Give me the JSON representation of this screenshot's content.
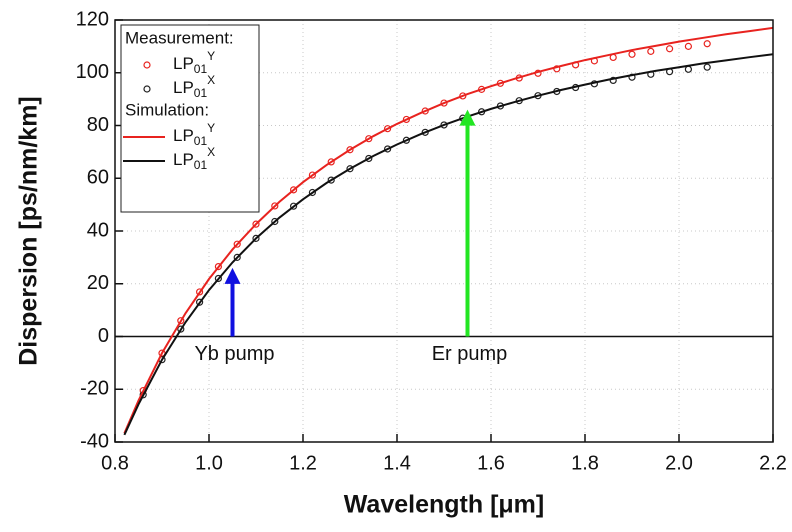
{
  "chart_data": {
    "type": "line",
    "x_label": "Wavelength [μm]",
    "y_label": "Dispersion [ps/nm/km]",
    "xlim": [
      0.8,
      2.2
    ],
    "ylim": [
      -40,
      120
    ],
    "xticks": [
      0.8,
      {
        "value": 1.0,
        "label": "1.0"
      },
      1.2,
      1.4,
      1.6,
      1.8,
      {
        "value": 2.0,
        "label": "2.0"
      },
      2.2
    ],
    "yticks": [
      -40,
      -20,
      0,
      20,
      40,
      60,
      80,
      100,
      120
    ],
    "grid": true,
    "zero_line": true,
    "legend_position": "upper left",
    "legend_titles": {
      "markers": "Measurement:",
      "line": "Simulation:"
    },
    "series": [
      {
        "name": "LP01Y",
        "color": "#e8231f",
        "mode": "markers",
        "x": [
          0.86,
          0.9,
          0.94,
          0.98,
          1.02,
          1.06,
          1.1,
          1.14,
          1.18,
          1.22,
          1.26,
          1.3,
          1.34,
          1.38,
          1.42,
          1.46,
          1.5,
          1.54,
          1.58,
          1.62,
          1.66,
          1.7,
          1.74,
          1.78,
          1.82,
          1.86,
          1.9,
          1.94,
          1.98,
          2.02,
          2.06
        ],
        "values": [
          -20.5,
          -6.3,
          6.0,
          16.9,
          26.5,
          35.0,
          42.6,
          49.5,
          55.6,
          61.2,
          66.2,
          70.8,
          75.0,
          78.8,
          82.3,
          85.5,
          88.5,
          91.2,
          93.7,
          96.0,
          98.0,
          99.8,
          101.5,
          103.0,
          104.5,
          105.8,
          107.0,
          108.1,
          109.1,
          110.0,
          111.0
        ]
      },
      {
        "name": "LP01X",
        "color": "#222222",
        "mode": "markers",
        "x": [
          0.86,
          0.9,
          0.94,
          0.98,
          1.02,
          1.06,
          1.1,
          1.14,
          1.18,
          1.22,
          1.26,
          1.3,
          1.34,
          1.38,
          1.42,
          1.46,
          1.5,
          1.54,
          1.58,
          1.62,
          1.66,
          1.7,
          1.74,
          1.78,
          1.82,
          1.86,
          1.9,
          1.94,
          1.98,
          2.02,
          2.06
        ],
        "values": [
          -22.1,
          -8.8,
          2.8,
          13.0,
          22.0,
          30.0,
          37.2,
          43.6,
          49.4,
          54.6,
          59.3,
          63.6,
          67.5,
          71.1,
          74.4,
          77.4,
          80.2,
          82.8,
          85.2,
          87.4,
          89.4,
          91.3,
          92.9,
          94.4,
          95.8,
          97.1,
          98.3,
          99.4,
          100.4,
          101.3,
          102.1
        ]
      },
      {
        "name": "LP01Y",
        "color": "#e8231f",
        "mode": "line",
        "x": [
          0.82,
          0.85,
          0.9,
          0.95,
          1.0,
          1.05,
          1.1,
          1.15,
          1.2,
          1.25,
          1.3,
          1.35,
          1.4,
          1.45,
          1.5,
          1.55,
          1.6,
          1.65,
          1.7,
          1.75,
          1.8,
          1.85,
          1.9,
          1.95,
          2.0,
          2.05,
          2.1,
          2.15,
          2.2
        ],
        "values": [
          -36.7,
          -24.3,
          -6.3,
          8.8,
          21.8,
          33.0,
          42.6,
          51.1,
          58.5,
          65.0,
          70.8,
          76.0,
          80.6,
          84.7,
          88.5,
          91.9,
          94.9,
          97.7,
          100.3,
          102.6,
          104.8,
          106.7,
          108.6,
          110.2,
          111.8,
          113.2,
          114.6,
          115.8,
          117.0
        ]
      },
      {
        "name": "LP01X",
        "color": "#111111",
        "mode": "line",
        "x": [
          0.82,
          0.85,
          0.9,
          0.95,
          1.0,
          1.05,
          1.1,
          1.15,
          1.2,
          1.25,
          1.3,
          1.35,
          1.4,
          1.45,
          1.5,
          1.55,
          1.6,
          1.65,
          1.7,
          1.75,
          1.8,
          1.85,
          1.9,
          1.95,
          2.0,
          2.05,
          2.1,
          2.15,
          2.2
        ],
        "values": [
          -37.3,
          -25.7,
          -8.8,
          5.4,
          17.6,
          28.1,
          37.2,
          45.1,
          52.0,
          58.2,
          63.6,
          68.5,
          72.8,
          76.7,
          80.2,
          83.4,
          86.3,
          88.9,
          91.3,
          93.5,
          95.5,
          97.4,
          99.1,
          100.7,
          102.1,
          103.5,
          104.7,
          105.9,
          107.0
        ]
      }
    ],
    "annotations": [
      {
        "text": "Yb pump",
        "x": 1.05,
        "y": 26,
        "color": "#1010e0"
      },
      {
        "text": "Er pump",
        "x": 1.55,
        "y": 86,
        "color": "#22e622"
      }
    ]
  }
}
